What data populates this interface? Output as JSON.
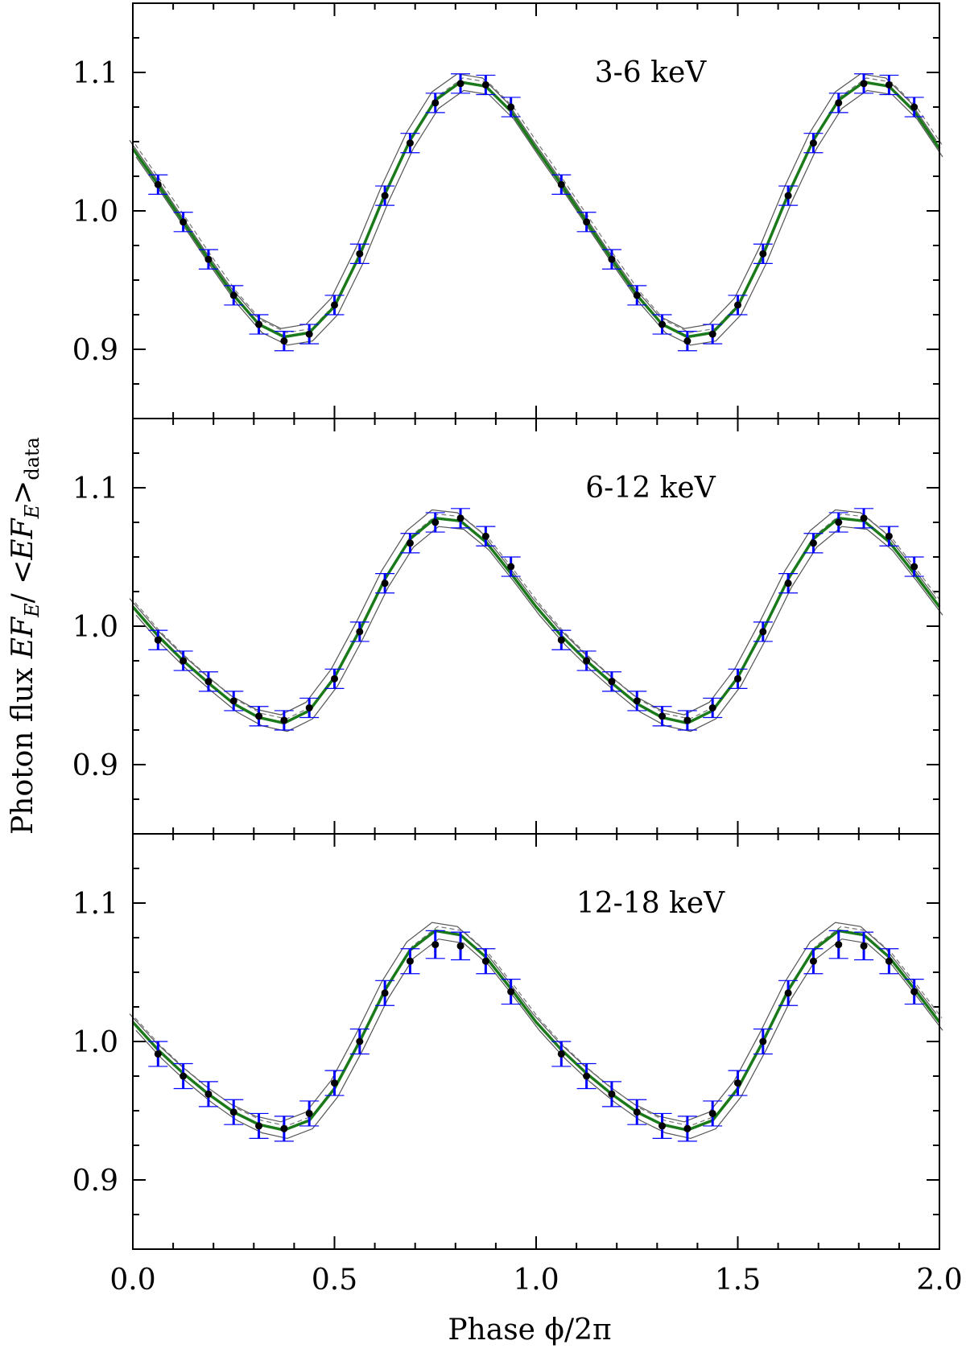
{
  "chart_data": {
    "type": "scatter",
    "layout": "three stacked panels sharing the x axis",
    "xlabel": "Phase ϕ/2π",
    "ylabel_prefix": "Photon flux ",
    "ylabel_math": "EF",
    "ylabel_sub": "E",
    "ylabel_mid": "/ <",
    "ylabel_math2": "EF",
    "ylabel_sub2": "E",
    "ylabel_close": ">",
    "ylabel_sub3": "data",
    "xlim": [
      0.0,
      2.0
    ],
    "ylim": [
      0.85,
      1.15
    ],
    "x_ticks": [
      "0.0",
      "0.5",
      "1.0",
      "1.5",
      "2.0"
    ],
    "x_tick_values": [
      0.0,
      0.5,
      1.0,
      1.5,
      2.0
    ],
    "y_ticks": [
      "0.9",
      "1.0",
      "1.1"
    ],
    "y_tick_values": [
      0.9,
      1.0,
      1.1
    ],
    "x_points": [
      0.0625,
      0.125,
      0.1875,
      0.25,
      0.3125,
      0.375,
      0.4375,
      0.5,
      0.5625,
      0.625,
      0.6875,
      0.75,
      0.8125,
      0.875,
      0.9375,
      1.0625,
      1.125,
      1.1875,
      1.25,
      1.3125,
      1.375,
      1.4375,
      1.5,
      1.5625,
      1.625,
      1.6875,
      1.75,
      1.8125,
      1.875,
      1.9375
    ],
    "colors": {
      "data_points": "#000000",
      "error_bars": "#0000ff",
      "model_best": "#1a7a1a",
      "model_envelope": "#555555",
      "model_dashed": "#777777"
    },
    "panels": [
      {
        "label": "3-6 keV",
        "y": [
          1.019,
          0.992,
          0.965,
          0.939,
          0.918,
          0.906,
          0.911,
          0.932,
          0.969,
          1.011,
          1.049,
          1.078,
          1.092,
          1.091,
          1.075,
          1.019,
          0.992,
          0.965,
          0.939,
          0.918,
          0.906,
          0.911,
          0.932,
          0.969,
          1.011,
          1.049,
          1.078,
          1.092,
          1.091,
          1.075
        ],
        "err": [
          0.007,
          0.007,
          0.007,
          0.007,
          0.007,
          0.007,
          0.007,
          0.007,
          0.007,
          0.007,
          0.007,
          0.007,
          0.007,
          0.007,
          0.007,
          0.007,
          0.007,
          0.007,
          0.007,
          0.007,
          0.007,
          0.007,
          0.007,
          0.007,
          0.007,
          0.007,
          0.007,
          0.007,
          0.007,
          0.007
        ],
        "model": {
          "x": [
            0.0,
            0.0625,
            0.125,
            0.1875,
            0.25,
            0.3125,
            0.375,
            0.4375,
            0.5,
            0.5625,
            0.625,
            0.6875,
            0.75,
            0.8125,
            0.875,
            0.9375,
            1.0,
            1.0625,
            1.125,
            1.1875,
            1.25,
            1.3125,
            1.375,
            1.4375,
            1.5,
            1.5625,
            1.625,
            1.6875,
            1.75,
            1.8125,
            1.875,
            1.9375,
            2.0
          ],
          "y": [
            1.045,
            1.019,
            0.992,
            0.965,
            0.939,
            0.918,
            0.909,
            0.912,
            0.931,
            0.968,
            1.012,
            1.051,
            1.08,
            1.093,
            1.09,
            1.072,
            1.045,
            1.019,
            0.992,
            0.965,
            0.939,
            0.918,
            0.909,
            0.912,
            0.931,
            0.968,
            1.012,
            1.051,
            1.08,
            1.093,
            1.09,
            1.072,
            1.045
          ]
        }
      },
      {
        "label": "6-12 keV",
        "y": [
          0.99,
          0.975,
          0.96,
          0.946,
          0.935,
          0.932,
          0.941,
          0.962,
          0.996,
          1.031,
          1.06,
          1.075,
          1.078,
          1.065,
          1.043,
          0.99,
          0.975,
          0.96,
          0.946,
          0.935,
          0.932,
          0.941,
          0.962,
          0.996,
          1.031,
          1.06,
          1.075,
          1.078,
          1.065,
          1.043
        ],
        "err": [
          0.007,
          0.007,
          0.007,
          0.007,
          0.007,
          0.007,
          0.007,
          0.007,
          0.007,
          0.007,
          0.007,
          0.007,
          0.007,
          0.007,
          0.007,
          0.007,
          0.007,
          0.007,
          0.007,
          0.007,
          0.007,
          0.007,
          0.007,
          0.007,
          0.007,
          0.007,
          0.007,
          0.007,
          0.007,
          0.007
        ],
        "model": {
          "x": [
            0.0,
            0.0625,
            0.125,
            0.1875,
            0.25,
            0.3125,
            0.375,
            0.4375,
            0.5,
            0.5625,
            0.625,
            0.6875,
            0.75,
            0.8125,
            0.875,
            0.9375,
            1.0,
            1.0625,
            1.125,
            1.1875,
            1.25,
            1.3125,
            1.375,
            1.4375,
            1.5,
            1.5625,
            1.625,
            1.6875,
            1.75,
            1.8125,
            1.875,
            1.9375,
            2.0
          ],
          "y": [
            1.014,
            0.993,
            0.975,
            0.959,
            0.944,
            0.934,
            0.93,
            0.939,
            0.963,
            0.997,
            1.034,
            1.063,
            1.078,
            1.076,
            1.061,
            1.038,
            1.014,
            0.993,
            0.975,
            0.959,
            0.944,
            0.934,
            0.93,
            0.939,
            0.963,
            0.997,
            1.034,
            1.063,
            1.078,
            1.076,
            1.061,
            1.038,
            1.014
          ]
        }
      },
      {
        "label": "12-18 keV",
        "y": [
          0.991,
          0.975,
          0.962,
          0.949,
          0.939,
          0.937,
          0.948,
          0.97,
          1.0,
          1.035,
          1.058,
          1.07,
          1.069,
          1.058,
          1.036,
          0.991,
          0.975,
          0.962,
          0.949,
          0.939,
          0.937,
          0.948,
          0.97,
          1.0,
          1.035,
          1.058,
          1.07,
          1.069,
          1.058,
          1.036
        ],
        "err": [
          0.009,
          0.009,
          0.009,
          0.009,
          0.009,
          0.009,
          0.009,
          0.009,
          0.009,
          0.009,
          0.009,
          0.01,
          0.01,
          0.009,
          0.009,
          0.009,
          0.009,
          0.009,
          0.009,
          0.009,
          0.009,
          0.009,
          0.009,
          0.009,
          0.009,
          0.009,
          0.01,
          0.01,
          0.009,
          0.009
        ],
        "model": {
          "x": [
            0.0,
            0.0625,
            0.125,
            0.1875,
            0.25,
            0.3125,
            0.375,
            0.4375,
            0.5,
            0.5625,
            0.625,
            0.6875,
            0.75,
            0.8125,
            0.875,
            0.9375,
            1.0,
            1.0625,
            1.125,
            1.1875,
            1.25,
            1.3125,
            1.375,
            1.4375,
            1.5,
            1.5625,
            1.625,
            1.6875,
            1.75,
            1.8125,
            1.875,
            1.9375,
            2.0
          ],
          "y": [
            1.014,
            0.994,
            0.977,
            0.962,
            0.949,
            0.94,
            0.936,
            0.943,
            0.966,
            1.0,
            1.037,
            1.066,
            1.08,
            1.077,
            1.061,
            1.038,
            1.014,
            0.994,
            0.977,
            0.962,
            0.949,
            0.94,
            0.936,
            0.943,
            0.966,
            1.0,
            1.037,
            1.066,
            1.08,
            1.077,
            1.061,
            1.038,
            1.014
          ]
        }
      }
    ]
  }
}
